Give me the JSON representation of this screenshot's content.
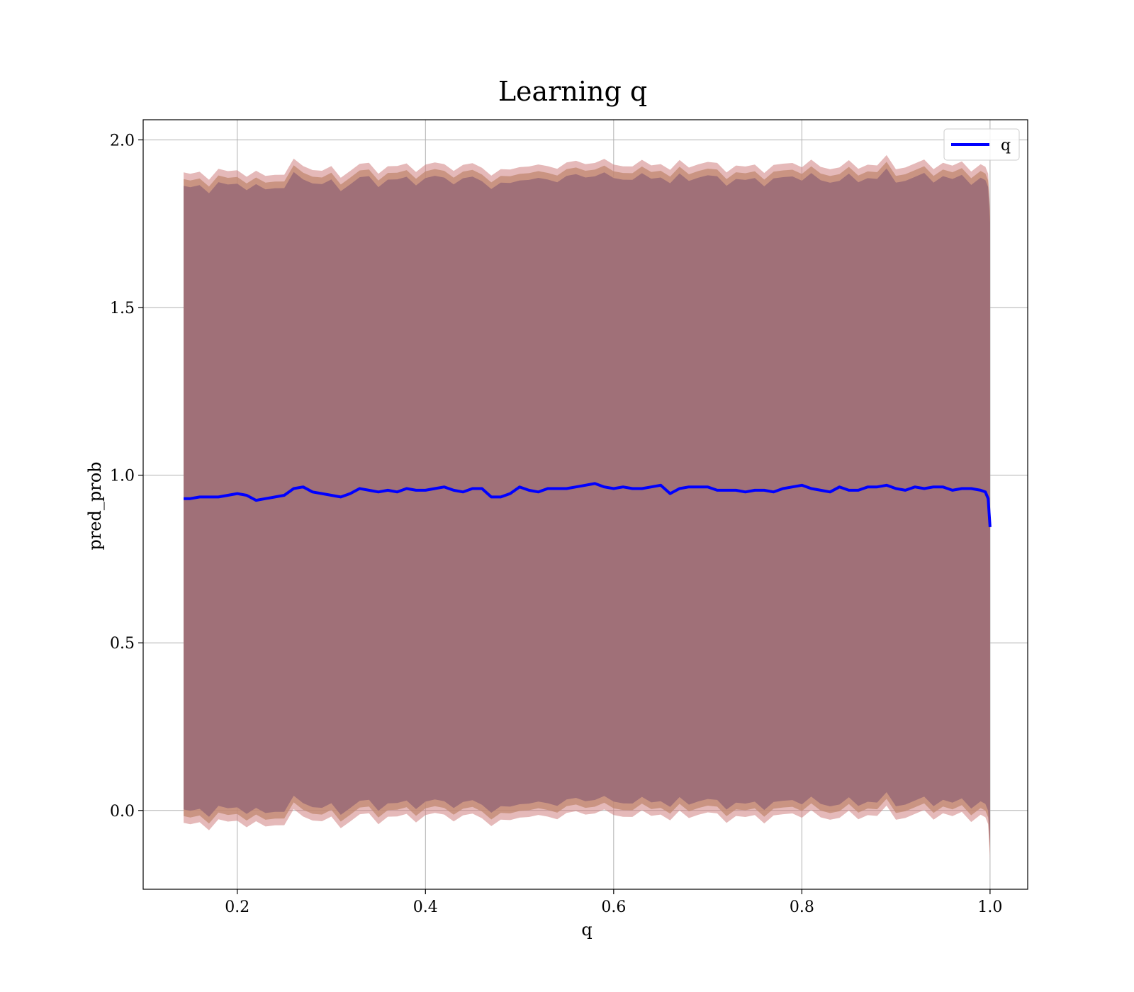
{
  "chart_data": {
    "type": "line",
    "title": "Learning q",
    "xlabel": "q",
    "ylabel": "pred_prob",
    "xlim": [
      0.1,
      1.04
    ],
    "ylim": [
      -0.235,
      2.06
    ],
    "x_ticks": [
      0.2,
      0.4,
      0.6,
      0.8,
      1.0
    ],
    "y_ticks": [
      0.0,
      0.5,
      1.0,
      1.5,
      2.0
    ],
    "x_tick_labels": [
      "0.2",
      "0.4",
      "0.6",
      "0.8",
      "1.0"
    ],
    "y_tick_labels": [
      "0.0",
      "0.5",
      "1.0",
      "1.5",
      "2.0"
    ],
    "grid": true,
    "legend": {
      "position": "top-right",
      "entries": [
        "q"
      ]
    },
    "series": [
      {
        "name": "q",
        "color": "#0000ff",
        "x": [
          0.143,
          0.15,
          0.16,
          0.17,
          0.18,
          0.19,
          0.2,
          0.21,
          0.22,
          0.23,
          0.24,
          0.25,
          0.26,
          0.27,
          0.28,
          0.29,
          0.3,
          0.31,
          0.32,
          0.33,
          0.34,
          0.35,
          0.36,
          0.37,
          0.38,
          0.39,
          0.4,
          0.41,
          0.42,
          0.43,
          0.44,
          0.45,
          0.46,
          0.47,
          0.48,
          0.49,
          0.5,
          0.51,
          0.52,
          0.53,
          0.54,
          0.55,
          0.56,
          0.57,
          0.58,
          0.59,
          0.6,
          0.61,
          0.62,
          0.63,
          0.64,
          0.65,
          0.66,
          0.67,
          0.68,
          0.69,
          0.7,
          0.71,
          0.72,
          0.73,
          0.74,
          0.75,
          0.76,
          0.77,
          0.78,
          0.79,
          0.8,
          0.81,
          0.82,
          0.83,
          0.84,
          0.85,
          0.86,
          0.87,
          0.88,
          0.89,
          0.9,
          0.91,
          0.92,
          0.93,
          0.94,
          0.95,
          0.96,
          0.97,
          0.98,
          0.99,
          0.995,
          0.998,
          1.0
        ],
        "y": [
          0.93,
          0.93,
          0.935,
          0.935,
          0.935,
          0.94,
          0.945,
          0.94,
          0.925,
          0.93,
          0.935,
          0.94,
          0.96,
          0.965,
          0.95,
          0.945,
          0.94,
          0.935,
          0.945,
          0.96,
          0.955,
          0.95,
          0.955,
          0.95,
          0.96,
          0.955,
          0.955,
          0.96,
          0.965,
          0.955,
          0.95,
          0.96,
          0.96,
          0.935,
          0.935,
          0.945,
          0.965,
          0.955,
          0.95,
          0.96,
          0.96,
          0.96,
          0.965,
          0.97,
          0.975,
          0.965,
          0.96,
          0.965,
          0.96,
          0.96,
          0.965,
          0.97,
          0.945,
          0.96,
          0.965,
          0.965,
          0.965,
          0.955,
          0.955,
          0.955,
          0.95,
          0.955,
          0.955,
          0.95,
          0.96,
          0.965,
          0.97,
          0.96,
          0.955,
          0.95,
          0.965,
          0.955,
          0.955,
          0.965,
          0.965,
          0.97,
          0.96,
          0.955,
          0.965,
          0.96,
          0.965,
          0.965,
          0.955,
          0.96,
          0.96,
          0.955,
          0.95,
          0.93,
          0.845
        ],
        "band_color": "#d08080",
        "band_inner_color": "#a07078"
      }
    ]
  }
}
